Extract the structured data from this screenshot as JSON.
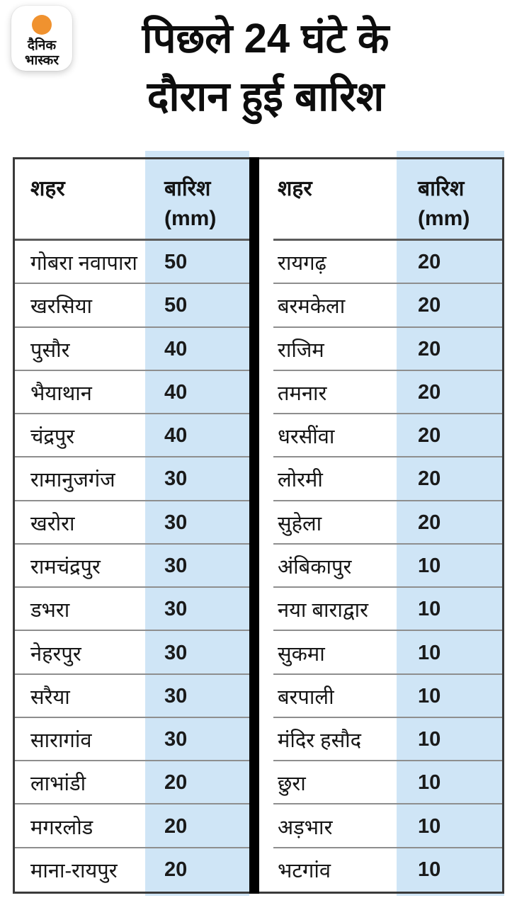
{
  "brand": {
    "logo_line1": "दैनिक",
    "logo_line2": "भास्कर"
  },
  "title": {
    "line1": "पिछले 24 घंटे के",
    "line2": "दौरान हुई बारिश"
  },
  "table": {
    "headers": {
      "city": "शहर",
      "rain": "बारिश",
      "rain_unit": "(mm)"
    },
    "left_rows": [
      {
        "city": "गोबरा नवापारा",
        "mm": "50"
      },
      {
        "city": "खरसिया",
        "mm": "50"
      },
      {
        "city": "पुसौर",
        "mm": "40"
      },
      {
        "city": "भैयाथान",
        "mm": "40"
      },
      {
        "city": "चंद्रपुर",
        "mm": "40"
      },
      {
        "city": "रामानुजगंज",
        "mm": "30"
      },
      {
        "city": "खरोरा",
        "mm": "30"
      },
      {
        "city": "रामचंद्रपुर",
        "mm": "30"
      },
      {
        "city": "डभरा",
        "mm": "30"
      },
      {
        "city": "नेहरपुर",
        "mm": "30"
      },
      {
        "city": "सरैया",
        "mm": "30"
      },
      {
        "city": "सारागांव",
        "mm": "30"
      },
      {
        "city": "लाभांडी",
        "mm": "20"
      },
      {
        "city": "मगरलोड",
        "mm": "20"
      },
      {
        "city": "माना-रायपुर",
        "mm": "20"
      }
    ],
    "right_rows": [
      {
        "city": "रायगढ़",
        "mm": "20"
      },
      {
        "city": "बरमकेला",
        "mm": "20"
      },
      {
        "city": "राजिम",
        "mm": "20"
      },
      {
        "city": "तमनार",
        "mm": "20"
      },
      {
        "city": "धरसींवा",
        "mm": "20"
      },
      {
        "city": "लोरमी",
        "mm": "20"
      },
      {
        "city": "सुहेला",
        "mm": "20"
      },
      {
        "city": "अंबिकापुर",
        "mm": "10"
      },
      {
        "city": "नया बाराद्वार",
        "mm": "10"
      },
      {
        "city": "सुकमा",
        "mm": "10"
      },
      {
        "city": "बरपाली",
        "mm": "10"
      },
      {
        "city": "मंदिर हसौद",
        "mm": "10"
      },
      {
        "city": "छुरा",
        "mm": "10"
      },
      {
        "city": "अड़भार",
        "mm": "10"
      },
      {
        "city": "भटगांव",
        "mm": "10"
      }
    ]
  },
  "colors": {
    "rain_column_blue": "#cfe5f6",
    "brand_orange": "#f0922f",
    "divider_black": "#000000"
  },
  "chart_data": {
    "type": "table",
    "title": "पिछले 24 घंटे के दौरान हुई बारिश",
    "columns": [
      "शहर",
      "बारिश (mm)"
    ],
    "rows": [
      [
        "गोबरा नवापारा",
        50
      ],
      [
        "खरसिया",
        50
      ],
      [
        "पुसौर",
        40
      ],
      [
        "भैयाथान",
        40
      ],
      [
        "चंद्रपुर",
        40
      ],
      [
        "रामानुजगंज",
        30
      ],
      [
        "खरोरा",
        30
      ],
      [
        "रामचंद्रपुर",
        30
      ],
      [
        "डभरा",
        30
      ],
      [
        "नेहरपुर",
        30
      ],
      [
        "सरैया",
        30
      ],
      [
        "सारागांव",
        30
      ],
      [
        "लाभांडी",
        20
      ],
      [
        "मगरलोड",
        20
      ],
      [
        "माना-रायपुर",
        20
      ],
      [
        "रायगढ़",
        20
      ],
      [
        "बरमकेला",
        20
      ],
      [
        "राजिम",
        20
      ],
      [
        "तमनार",
        20
      ],
      [
        "धरसींवा",
        20
      ],
      [
        "लोरमी",
        20
      ],
      [
        "सुहेला",
        20
      ],
      [
        "अंबिकापुर",
        10
      ],
      [
        "नया बाराद्वार",
        10
      ],
      [
        "सुकमा",
        10
      ],
      [
        "बरपाली",
        10
      ],
      [
        "मंदिर हसौद",
        10
      ],
      [
        "छुरा",
        10
      ],
      [
        "अड़भार",
        10
      ],
      [
        "भटगांव",
        10
      ]
    ],
    "unit": "mm",
    "layout": "two side-by-side tables, rainfall column shaded light blue"
  }
}
